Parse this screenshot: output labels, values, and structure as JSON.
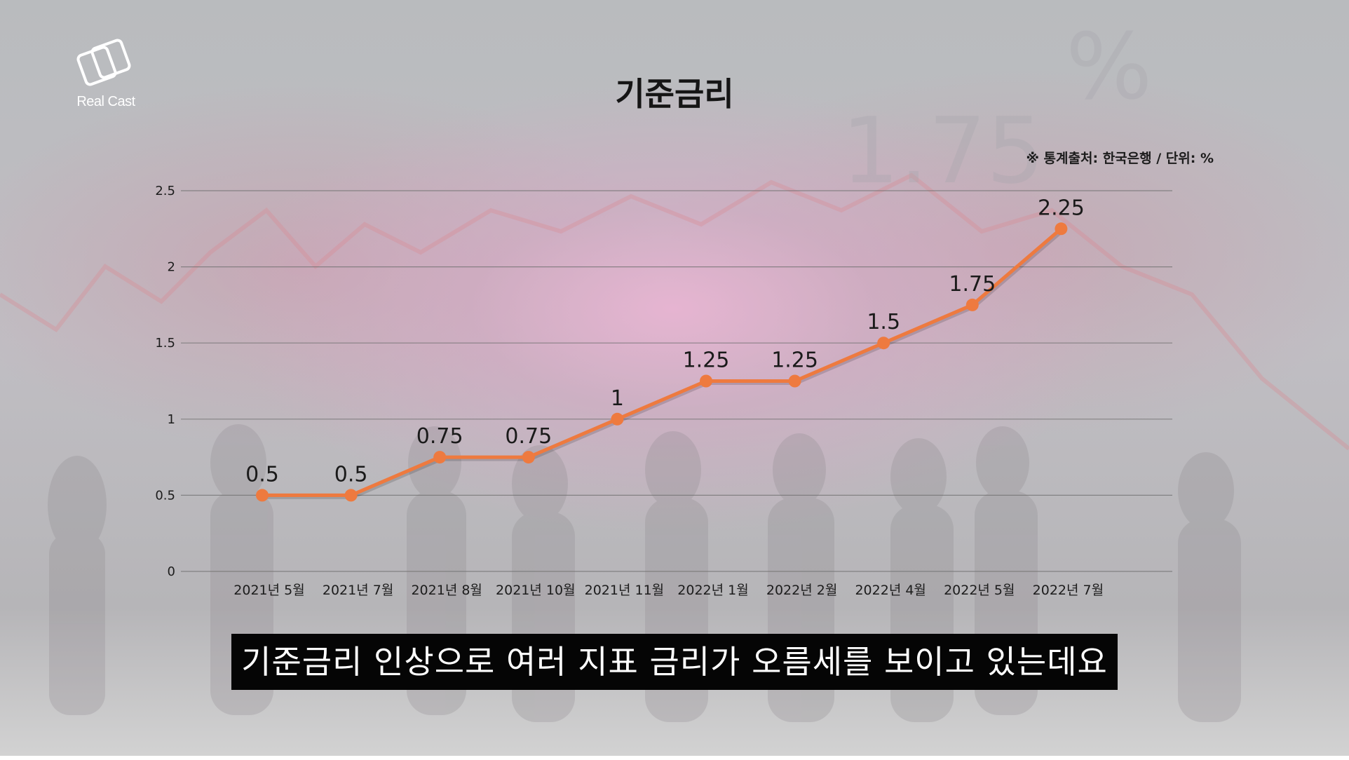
{
  "brand": {
    "logo_text": "Real Cast"
  },
  "header": {
    "title": "기준금리",
    "source_note": "※ 통계출처: 한국은행 / 단위: %"
  },
  "caption": {
    "text": "기준금리 인상으로 여러 지표 금리가 오름세를 보이고 있는데요"
  },
  "colors": {
    "line": "#ee7a3f",
    "point": "#ee7a3f",
    "grid": "#707070",
    "label": "#1c1c1c"
  },
  "chart_data": {
    "type": "line",
    "title": "기준금리",
    "xlabel": "",
    "ylabel": "",
    "unit": "%",
    "categories": [
      "2021년 5월",
      "2021년 7월",
      "2021년 8월",
      "2021년 10월",
      "2021년 11월",
      "2022년 1월",
      "2022년 2월",
      "2022년 4월",
      "2022년 5월",
      "2022년 7월"
    ],
    "series": [
      {
        "values": [
          0.5,
          0.5,
          0.75,
          0.75,
          1,
          1.25,
          1.25,
          1.5,
          1.75,
          2.25
        ],
        "labels": [
          "0.5",
          "0.5",
          "0.75",
          "0.75",
          "1",
          "1.25",
          "1.25",
          "1.5",
          "1.75",
          "2.25"
        ]
      }
    ],
    "ylim": [
      0,
      2.5
    ],
    "yticks": [
      0,
      0.5,
      1,
      1.5,
      2,
      2.5
    ],
    "ytick_labels": [
      "0",
      "0.5",
      "1",
      "1.5",
      "2",
      "2.5"
    ],
    "grid": true,
    "legend": "none"
  }
}
